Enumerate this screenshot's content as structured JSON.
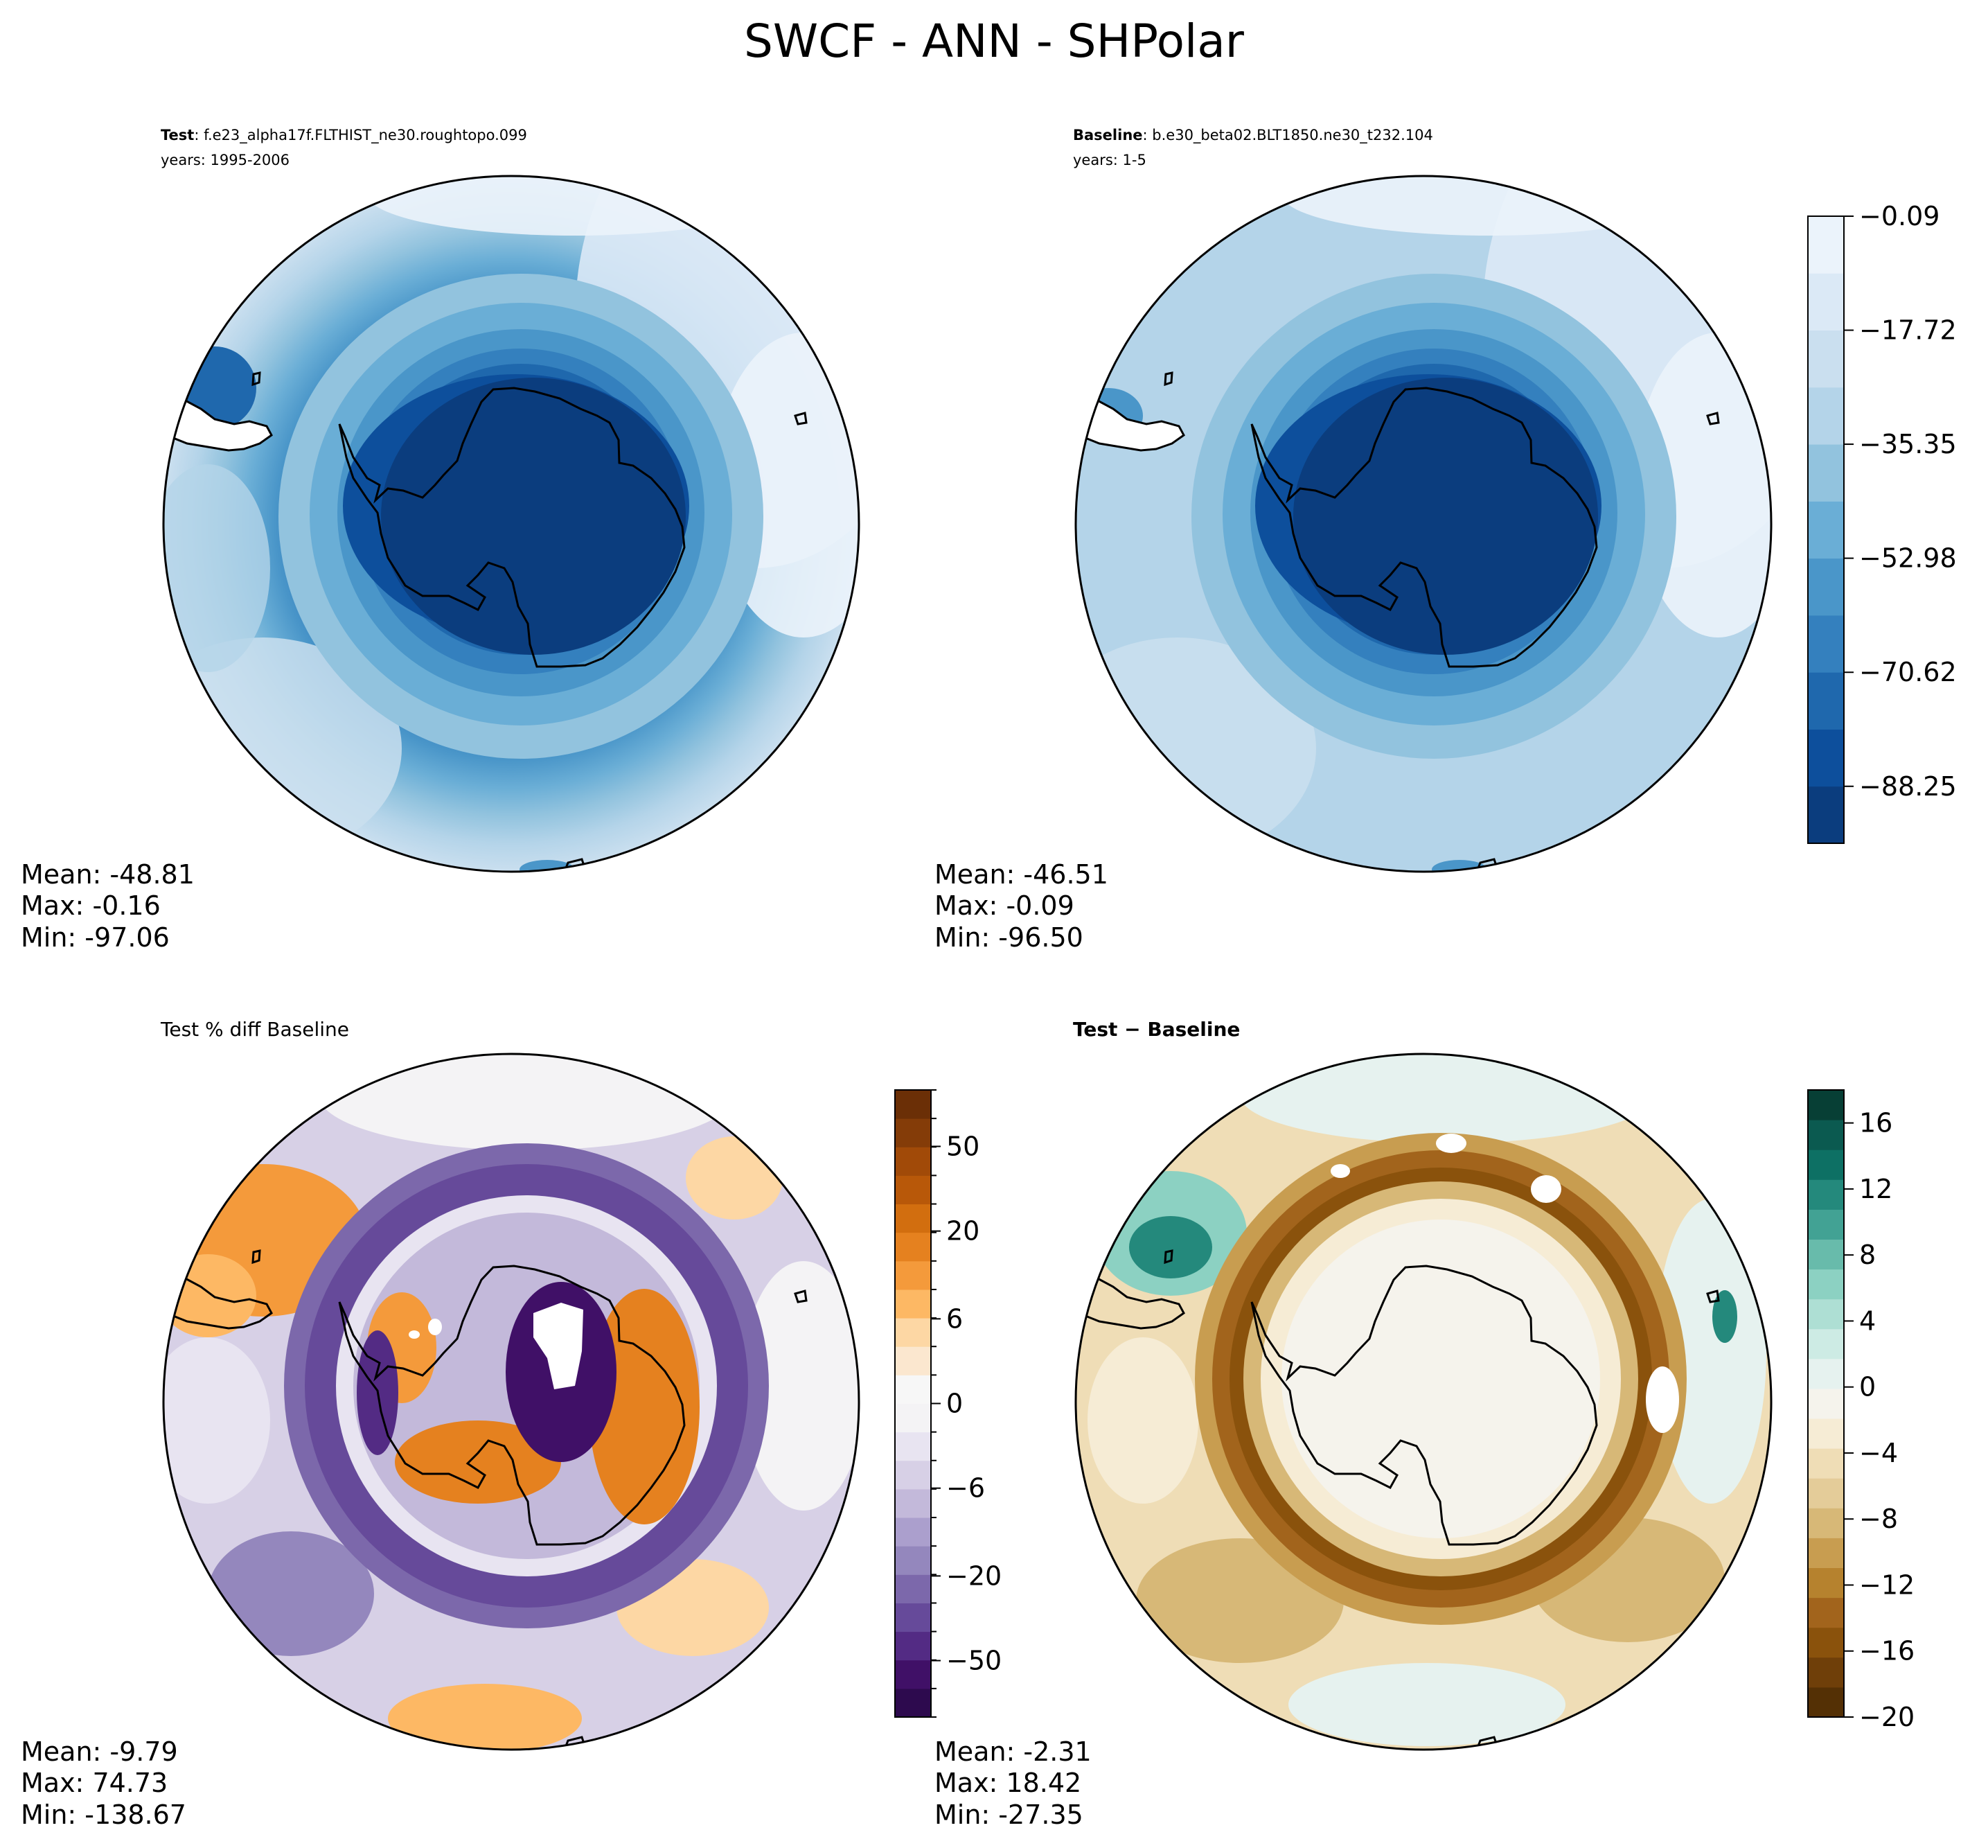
{
  "figure": {
    "title": "SWCF - ANN - SHPolar"
  },
  "panels": {
    "test": {
      "label_bold": "Test",
      "label_sep": ": ",
      "label_case": "f.e23_alpha17f.FLTHIST_ne30.roughtopo.099",
      "years": "years: 1995-2006",
      "stats": {
        "mean": "Mean: -48.81",
        "max": "Max: -0.16",
        "min": "Min: -97.06"
      }
    },
    "baseline": {
      "label_bold": "Baseline",
      "label_sep": ": ",
      "label_case": "b.e30_beta02.BLT1850.ne30_t232.104",
      "years": "years: 1-5",
      "stats": {
        "mean": "Mean: -46.51",
        "max": "Max: -0.09",
        "min": "Min: -96.50"
      }
    },
    "pctdiff": {
      "label": "Test % diff Baseline",
      "stats": {
        "mean": "Mean: -9.79",
        "max": "Max: 74.73",
        "min": "Min: -138.67"
      }
    },
    "diff": {
      "label_a": "Test",
      "label_op": " − ",
      "label_b": "Baseline",
      "stats": {
        "mean": "Mean: -2.31",
        "max": "Max: 18.42",
        "min": "Min: -27.35"
      }
    }
  },
  "chart_data": [
    {
      "type": "heatmap",
      "name": "Test",
      "projection": "south-polar-stereographic",
      "colormap": "Blues_r",
      "levels": [
        -97.06,
        -88.25,
        -79.44,
        -70.62,
        -61.8,
        -52.98,
        -44.16,
        -35.35,
        -26.53,
        -17.72,
        -8.9,
        -0.09
      ],
      "stats": {
        "mean": -48.81,
        "max": -0.16,
        "min": -97.06
      }
    },
    {
      "type": "heatmap",
      "name": "Baseline",
      "projection": "south-polar-stereographic",
      "colormap": "Blues_r",
      "colorbar": {
        "ticks": [
          "−0.09",
          "−17.72",
          "−35.35",
          "−52.98",
          "−70.62",
          "−88.25"
        ],
        "tick_values": [
          -0.09,
          -17.72,
          -35.35,
          -52.98,
          -70.62,
          -88.25
        ],
        "range": [
          -97.06,
          -0.09
        ],
        "colors": [
          "#0b3d7e",
          "#0d4f9c",
          "#1f68ad",
          "#3480be",
          "#4a96c9",
          "#6aaed6",
          "#92c3de",
          "#b4d4e9",
          "#cadfef",
          "#dbe9f6",
          "#ebf3fb"
        ]
      },
      "stats": {
        "mean": -46.51,
        "max": -0.09,
        "min": -96.5
      }
    },
    {
      "type": "heatmap",
      "name": "Test % diff Baseline",
      "projection": "south-polar-stereographic",
      "colormap": "PuOr_r",
      "colorbar": {
        "ticks": [
          "50",
          "20",
          "6",
          "0",
          "−6",
          "−20",
          "−50"
        ],
        "tick_values": [
          50,
          20,
          6,
          0,
          -6,
          -20,
          -50
        ],
        "level_count": 22,
        "colors": [
          "#2d0a4e",
          "#401067",
          "#532b84",
          "#664a9a",
          "#7c68ab",
          "#9487bd",
          "#ab9fcd",
          "#c3b9da",
          "#d7d0e6",
          "#e8e4f1",
          "#f4f3f5",
          "#f7f7f7",
          "#fbe7cf",
          "#fdd7a4",
          "#fdb864",
          "#f49a3b",
          "#e5811f",
          "#d26e0f",
          "#b85809",
          "#a14a08",
          "#843c08",
          "#6b2f06"
        ]
      },
      "stats": {
        "mean": -9.79,
        "max": 74.73,
        "min": -138.67
      }
    },
    {
      "type": "heatmap",
      "name": "Test − Baseline",
      "projection": "south-polar-stereographic",
      "colormap": "BrBG",
      "colorbar": {
        "ticks": [
          "16",
          "12",
          "8",
          "4",
          "0",
          "−4",
          "−8",
          "−12",
          "−16",
          "−20"
        ],
        "tick_values": [
          16,
          12,
          8,
          4,
          0,
          -4,
          -8,
          -12,
          -16,
          -20
        ],
        "range": [
          -20,
          18
        ],
        "step": 2,
        "colors": [
          "#543005",
          "#6f3f09",
          "#8a520c",
          "#a2641c",
          "#b6822e",
          "#c89d50",
          "#d7b877",
          "#e4cc99",
          "#efddb6",
          "#f6ecd5",
          "#f5f3ec",
          "#e6f2ef",
          "#cdebe4",
          "#aedfd4",
          "#8cd1c2",
          "#68bbab",
          "#42a294",
          "#24897c",
          "#0d7064",
          "#0b5a50",
          "#073f35"
        ]
      },
      "stats": {
        "mean": -2.31,
        "max": 18.42,
        "min": -27.35
      }
    }
  ]
}
